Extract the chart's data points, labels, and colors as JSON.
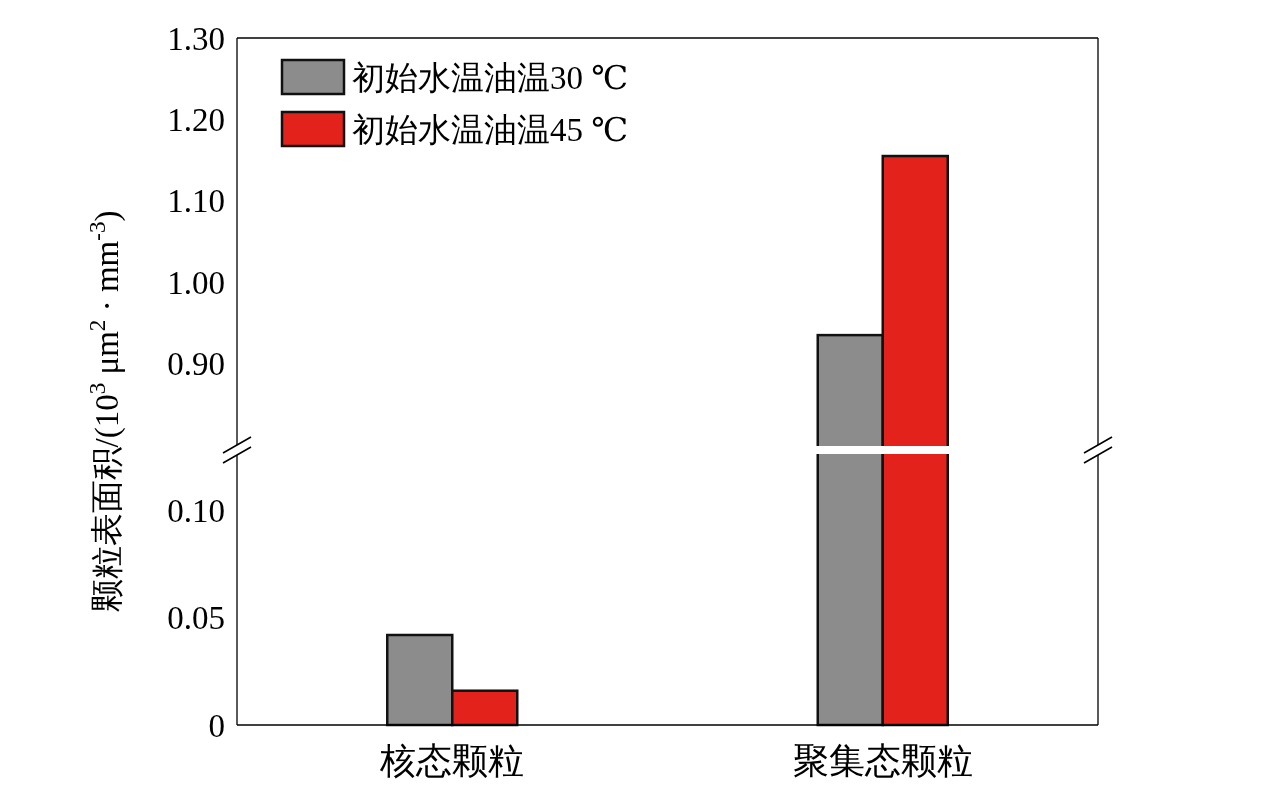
{
  "chart_data": [
    {
      "type": "bar",
      "ylabel": "颗粒表面积/(10$^{3}$ μm$^{2}$ · mm$^{-3}$)",
      "categories": [
        null,
        null
      ],
      "series": [
        {
          "name": "初始水温油温30 ℃",
          "color": "#8c8c8c",
          "values": [
            null,
            0.935
          ]
        },
        {
          "name": "初始水温油温45 ℃",
          "color": "#e3231b",
          "values": [
            null,
            1.155
          ]
        }
      ],
      "ylim": [
        0.8,
        1.3
      ],
      "yticks": [
        {
          "value": 0.9,
          "label": "0.90"
        },
        {
          "value": 1.0,
          "label": "1.00"
        },
        {
          "value": 1.1,
          "label": "1.10"
        },
        {
          "value": 1.2,
          "label": "1.20"
        },
        {
          "value": 1.3,
          "label": "1.30"
        }
      ],
      "legend": "top left",
      "grid": false,
      "tick_labels": "y"
    },
    {
      "type": "bar",
      "categories": [
        "核态颗粒",
        "聚集态颗粒"
      ],
      "series": [
        {
          "color": "#8c8c8c",
          "values": [
            0.042,
            null
          ]
        },
        {
          "color": "#e3231b",
          "values": [
            0.016,
            null
          ]
        }
      ],
      "ylim": [
        0,
        0.126
      ],
      "yticks": [
        0,
        0.05,
        {
          "value": 0.1,
          "label": "0.10"
        }
      ],
      "grid": false
    }
  ]
}
